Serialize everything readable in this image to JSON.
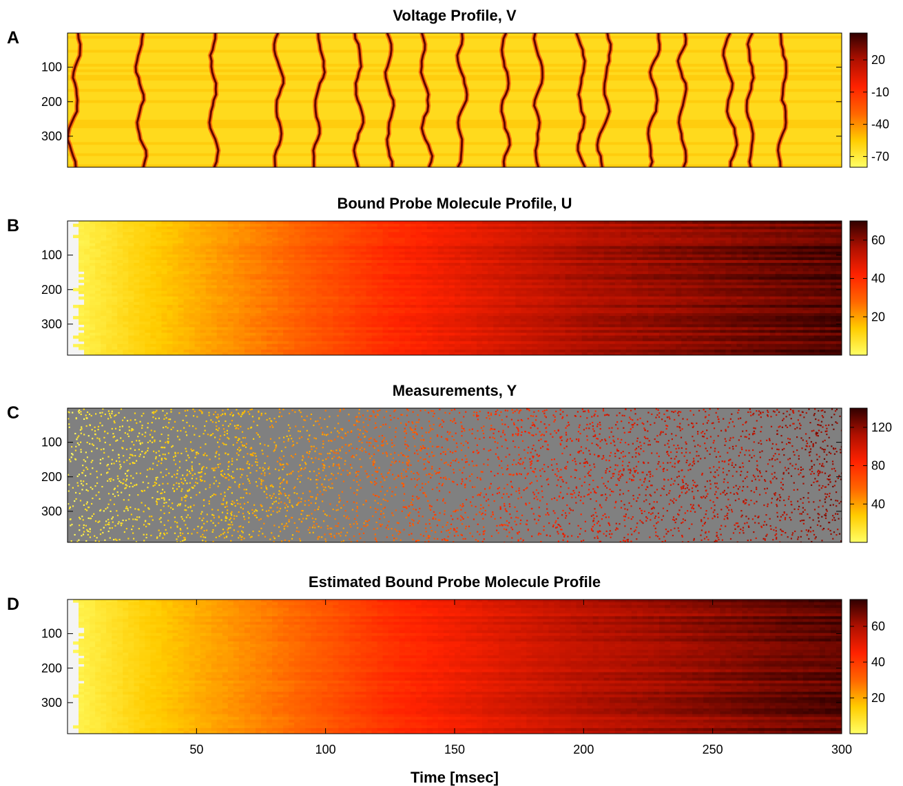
{
  "chart_data": [
    {
      "type": "heatmap",
      "panel_letter": "A",
      "title": "Voltage Profile, V",
      "pattern": "spikes",
      "yticks": [
        100,
        200,
        300
      ],
      "ylim": [
        1,
        390
      ],
      "xlim": [
        0,
        300
      ],
      "colorbar": {
        "ticks": [
          20,
          -10,
          -40,
          -70
        ],
        "range": [
          -80,
          45
        ]
      },
      "z_range": [
        -80,
        45
      ],
      "spike_times_msec": [
        4,
        28,
        56,
        82,
        98,
        112,
        124,
        136,
        152,
        170,
        182,
        198,
        210,
        228,
        238,
        256,
        266,
        278
      ],
      "x": [
        0,
        300
      ],
      "values_note_hidden": ""
    },
    {
      "type": "heatmap",
      "panel_letter": "B",
      "title": "Bound Probe Molecule Profile, U",
      "pattern": "smooth",
      "yticks": [
        100,
        200,
        300
      ],
      "ylim": [
        1,
        390
      ],
      "xlim": [
        0,
        300
      ],
      "colorbar": {
        "ticks": [
          60,
          40,
          20
        ],
        "range": [
          0,
          70
        ]
      },
      "z_range": [
        0,
        70
      ],
      "time_samples_msec": [
        0,
        28,
        56,
        82,
        98,
        124,
        170,
        200,
        238,
        278,
        300
      ],
      "mean_values": [
        2,
        12,
        20,
        27,
        32,
        40,
        50,
        56,
        60,
        64,
        66
      ]
    },
    {
      "type": "heatmap",
      "panel_letter": "C",
      "title": "Measurements, Y",
      "pattern": "sparse",
      "yticks": [
        100,
        200,
        300
      ],
      "ylim": [
        1,
        390
      ],
      "xlim": [
        0,
        300
      ],
      "colorbar": {
        "ticks": [
          120,
          80,
          40
        ],
        "range": [
          0,
          140
        ]
      },
      "z_range": [
        0,
        140
      ],
      "background_color": "#808080",
      "time_samples_msec": [
        0,
        28,
        56,
        82,
        98,
        124,
        170,
        200,
        238,
        278,
        300
      ],
      "mean_values": [
        8,
        20,
        30,
        38,
        45,
        60,
        80,
        92,
        100,
        110,
        120
      ]
    },
    {
      "type": "heatmap",
      "panel_letter": "D",
      "title": "Estimated Bound Probe Molecule Profile",
      "pattern": "smooth",
      "yticks": [
        100,
        200,
        300
      ],
      "ylim": [
        1,
        390
      ],
      "xlim": [
        0,
        300
      ],
      "xticks": [
        50,
        100,
        150,
        200,
        250,
        300
      ],
      "xlabel": "Time [msec]",
      "colorbar": {
        "ticks": [
          60,
          40,
          20
        ],
        "range": [
          0,
          75
        ]
      },
      "z_range": [
        0,
        75
      ],
      "time_samples_msec": [
        0,
        28,
        56,
        82,
        98,
        124,
        170,
        200,
        238,
        278,
        300
      ],
      "mean_values": [
        2,
        13,
        21,
        28,
        33,
        42,
        52,
        58,
        63,
        68,
        70
      ]
    }
  ],
  "colormap": [
    "#ffff66",
    "#ffcc00",
    "#ff6600",
    "#ff2200",
    "#b01000",
    "#300000"
  ],
  "empty_region_color": "#f4f4f4"
}
